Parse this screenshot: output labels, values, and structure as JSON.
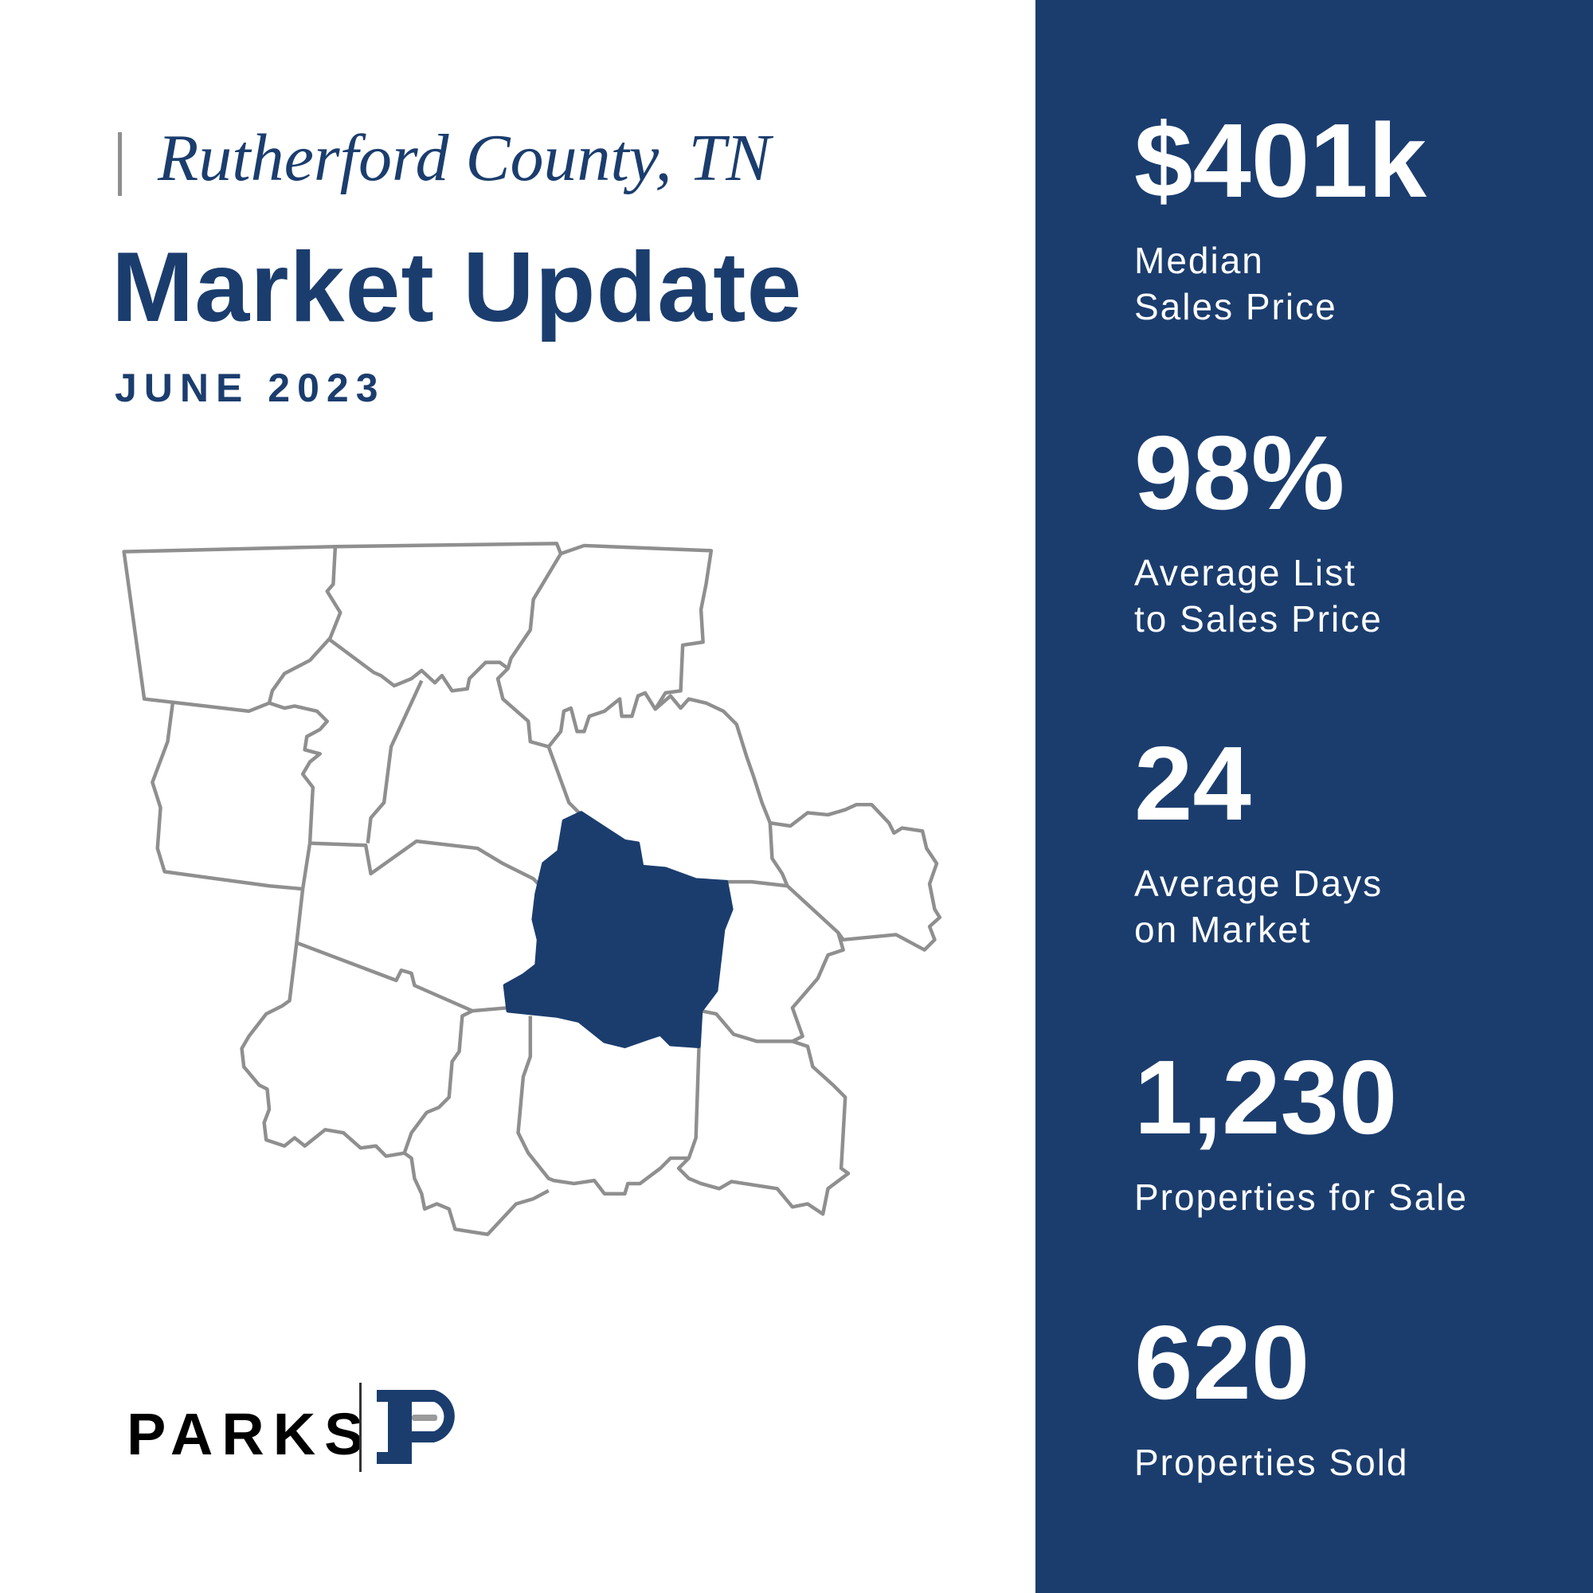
{
  "header": {
    "location": "Rutherford County, TN",
    "title": "Market Update",
    "date": "JUNE 2023"
  },
  "map": {
    "highlighted_county": "Rutherford County",
    "highlight_color": "#1b3d6e",
    "outline_color": "#8f8f8f"
  },
  "stats": [
    {
      "value": "$401k",
      "label": "Median\nSales Price"
    },
    {
      "value": "98%",
      "label": "Average List\nto Sales Price"
    },
    {
      "value": "24",
      "label": "Average Days\non Market"
    },
    {
      "value": "1,230",
      "label": "Properties for Sale"
    },
    {
      "value": "620",
      "label": "Properties Sold"
    }
  ],
  "logo": {
    "wordmark": "PARKS",
    "brand_color": "#1b3d6e"
  },
  "colors": {
    "panel": "#1b3d6e",
    "accent_text": "#1b3d6e"
  }
}
